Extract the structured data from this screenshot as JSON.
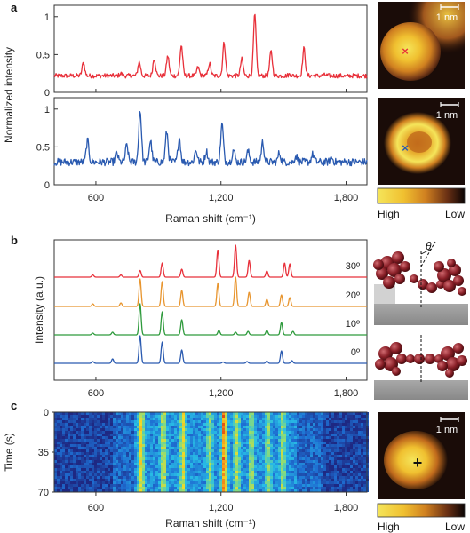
{
  "panels": {
    "a": "a",
    "b": "b",
    "c": "c"
  },
  "chart_data": [
    {
      "panel": "a",
      "type": "line",
      "subplots": [
        {
          "color": "#e8303a",
          "ylim": [
            0,
            1.15
          ],
          "y_ticks": [
            {
              "value": 0,
              "label": "0"
            },
            {
              "value": 0.5,
              "label": "0.5"
            },
            {
              "value": 1,
              "label": "1"
            }
          ],
          "baseline": 0.22,
          "peaks": [
            {
              "x": 540,
              "y": 0.39
            },
            {
              "x": 720,
              "y": 0.25
            },
            {
              "x": 808,
              "y": 0.4
            },
            {
              "x": 880,
              "y": 0.45
            },
            {
              "x": 945,
              "y": 0.48
            },
            {
              "x": 1010,
              "y": 0.62
            },
            {
              "x": 1090,
              "y": 0.33
            },
            {
              "x": 1145,
              "y": 0.38
            },
            {
              "x": 1215,
              "y": 0.66
            },
            {
              "x": 1300,
              "y": 0.44
            },
            {
              "x": 1362,
              "y": 1.02
            },
            {
              "x": 1440,
              "y": 0.54
            },
            {
              "x": 1530,
              "y": 0.24
            },
            {
              "x": 1598,
              "y": 0.58
            },
            {
              "x": 1700,
              "y": 0.23
            },
            {
              "x": 1800,
              "y": 0.21
            }
          ]
        },
        {
          "color": "#2a5ab0",
          "ylim": [
            0,
            1.15
          ],
          "y_ticks": [
            {
              "value": 0,
              "label": "0"
            },
            {
              "value": 0.5,
              "label": "0.5"
            },
            {
              "value": 1,
              "label": "1"
            }
          ],
          "baseline": 0.3,
          "peaks": [
            {
              "x": 560,
              "y": 0.58
            },
            {
              "x": 700,
              "y": 0.42
            },
            {
              "x": 748,
              "y": 0.52
            },
            {
              "x": 812,
              "y": 0.98
            },
            {
              "x": 862,
              "y": 0.58
            },
            {
              "x": 940,
              "y": 0.7
            },
            {
              "x": 1000,
              "y": 0.62
            },
            {
              "x": 1080,
              "y": 0.46
            },
            {
              "x": 1130,
              "y": 0.44
            },
            {
              "x": 1205,
              "y": 0.8
            },
            {
              "x": 1260,
              "y": 0.46
            },
            {
              "x": 1330,
              "y": 0.44
            },
            {
              "x": 1400,
              "y": 0.56
            },
            {
              "x": 1480,
              "y": 0.42
            },
            {
              "x": 1560,
              "y": 0.38
            },
            {
              "x": 1640,
              "y": 0.4
            },
            {
              "x": 1730,
              "y": 0.36
            }
          ]
        }
      ],
      "xlim": [
        400,
        1900
      ],
      "x_ticks": [
        {
          "value": 600,
          "label": "600"
        },
        {
          "value": 1200,
          "label": "1,200"
        },
        {
          "value": 1800,
          "label": "1,800"
        }
      ],
      "xlabel": "Raman shift (cm⁻¹)",
      "ylabel": "Normalized intensity"
    },
    {
      "panel": "b",
      "type": "line",
      "series": [
        {
          "name": "0º",
          "color": "#2a5ab0",
          "peaks": [
            {
              "x": 585,
              "y": 0.04
            },
            {
              "x": 680,
              "y": 0.1
            },
            {
              "x": 812,
              "y": 0.62
            },
            {
              "x": 918,
              "y": 0.48
            },
            {
              "x": 1012,
              "y": 0.3
            },
            {
              "x": 1210,
              "y": 0.03
            },
            {
              "x": 1325,
              "y": 0.04
            },
            {
              "x": 1420,
              "y": 0.05
            },
            {
              "x": 1490,
              "y": 0.28
            },
            {
              "x": 1540,
              "y": 0.06
            }
          ]
        },
        {
          "name": "10º",
          "color": "#2e9a3c",
          "peaks": [
            {
              "x": 585,
              "y": 0.04
            },
            {
              "x": 680,
              "y": 0.06
            },
            {
              "x": 812,
              "y": 0.7
            },
            {
              "x": 918,
              "y": 0.52
            },
            {
              "x": 1012,
              "y": 0.34
            },
            {
              "x": 1190,
              "y": 0.1
            },
            {
              "x": 1270,
              "y": 0.06
            },
            {
              "x": 1330,
              "y": 0.08
            },
            {
              "x": 1420,
              "y": 0.1
            },
            {
              "x": 1490,
              "y": 0.28
            },
            {
              "x": 1545,
              "y": 0.08
            }
          ]
        },
        {
          "name": "20º",
          "color": "#e8952e",
          "peaks": [
            {
              "x": 585,
              "y": 0.06
            },
            {
              "x": 720,
              "y": 0.08
            },
            {
              "x": 812,
              "y": 0.62
            },
            {
              "x": 918,
              "y": 0.56
            },
            {
              "x": 1012,
              "y": 0.36
            },
            {
              "x": 1185,
              "y": 0.52
            },
            {
              "x": 1270,
              "y": 0.66
            },
            {
              "x": 1335,
              "y": 0.32
            },
            {
              "x": 1420,
              "y": 0.16
            },
            {
              "x": 1490,
              "y": 0.26
            },
            {
              "x": 1530,
              "y": 0.2
            }
          ]
        },
        {
          "name": "30º",
          "color": "#e8303a",
          "peaks": [
            {
              "x": 585,
              "y": 0.05
            },
            {
              "x": 720,
              "y": 0.05
            },
            {
              "x": 812,
              "y": 0.15
            },
            {
              "x": 918,
              "y": 0.32
            },
            {
              "x": 1012,
              "y": 0.18
            },
            {
              "x": 1185,
              "y": 0.62
            },
            {
              "x": 1270,
              "y": 0.72
            },
            {
              "x": 1335,
              "y": 0.38
            },
            {
              "x": 1420,
              "y": 0.14
            },
            {
              "x": 1505,
              "y": 0.32
            },
            {
              "x": 1530,
              "y": 0.3
            }
          ]
        }
      ],
      "xlim": [
        400,
        1900
      ],
      "x_ticks": [
        {
          "value": 600,
          "label": "600"
        },
        {
          "value": 1200,
          "label": "1,200"
        },
        {
          "value": 1800,
          "label": "1,800"
        }
      ],
      "ylabel": "Intensity (a.u.)"
    },
    {
      "panel": "c",
      "type": "heatmap",
      "xlim": [
        400,
        1900
      ],
      "ylim": [
        0,
        70
      ],
      "x_ticks": [
        {
          "value": 600,
          "label": "600"
        },
        {
          "value": 1200,
          "label": "1,200"
        },
        {
          "value": 1800,
          "label": "1,800"
        }
      ],
      "y_ticks": [
        {
          "value": 0,
          "label": "0"
        },
        {
          "value": 35,
          "label": "35"
        },
        {
          "value": 70,
          "label": "70"
        }
      ],
      "xlabel": "Raman shift (cm⁻¹)",
      "ylabel": "Time (s)",
      "bands": [
        {
          "x": 812,
          "intensity": 0.7
        },
        {
          "x": 918,
          "intensity": 0.6
        },
        {
          "x": 1012,
          "intensity": 0.62
        },
        {
          "x": 1140,
          "intensity": 0.45
        },
        {
          "x": 1210,
          "intensity": 0.95
        },
        {
          "x": 1270,
          "intensity": 0.55
        },
        {
          "x": 1340,
          "intensity": 0.5
        },
        {
          "x": 1420,
          "intensity": 0.42
        },
        {
          "x": 1490,
          "intensity": 0.5
        }
      ]
    }
  ],
  "stm_images": {
    "scale_bar_label": "1 nm",
    "colorbar_high": "High",
    "colorbar_low": "Low",
    "colors": [
      "#f5e55a",
      "#f0c030",
      "#d08020",
      "#7a3d18",
      "#1a0c08"
    ],
    "markers": {
      "red": "#e8303a",
      "blue": "#2a5ab0",
      "black": "#111111"
    }
  },
  "molecule": {
    "theta_label": "θ",
    "color": "#8a2028",
    "substrate_color": "#9a9a9a"
  }
}
